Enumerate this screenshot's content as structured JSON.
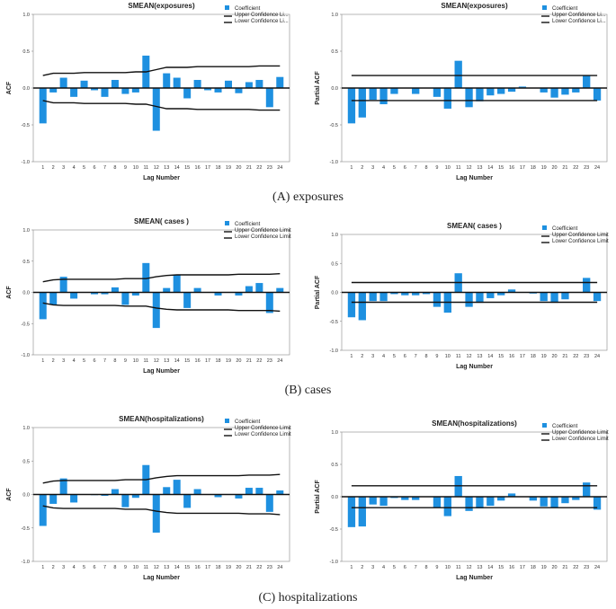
{
  "colors": {
    "bar": "#1E90E0",
    "line": "#111111",
    "axis": "#888888"
  },
  "captions": {
    "a": "(A)  exposures",
    "b": "(B)  cases",
    "c": "(C) hospitalizations"
  },
  "chart_data": [
    {
      "id": "a_acf",
      "type": "bar",
      "title": "SMEAN(exposures)",
      "xlabel": "Lag Number",
      "ylabel": "ACF",
      "ylim": [
        -1,
        1
      ],
      "yticks": [
        "1.0",
        "0.5",
        "0.0",
        "-0.5",
        "-1.0"
      ],
      "legend": [
        "Coefficient",
        "Upper Confidence Li...",
        "Lower Confidence Li..."
      ],
      "categories": [
        "1",
        "2",
        "3",
        "4",
        "5",
        "6",
        "7",
        "8",
        "9",
        "10",
        "11",
        "12",
        "13",
        "14",
        "15",
        "16",
        "17",
        "18",
        "19",
        "20",
        "21",
        "22",
        "23",
        "24"
      ],
      "values": [
        -0.48,
        -0.06,
        0.14,
        -0.12,
        0.1,
        -0.03,
        -0.12,
        0.11,
        -0.08,
        -0.06,
        0.44,
        -0.58,
        0.2,
        0.14,
        -0.14,
        0.11,
        -0.03,
        -0.06,
        0.1,
        -0.07,
        0.08,
        0.11,
        -0.26,
        0.15
      ],
      "upper": [
        0.17,
        0.2,
        0.2,
        0.2,
        0.21,
        0.21,
        0.21,
        0.21,
        0.21,
        0.22,
        0.22,
        0.25,
        0.28,
        0.28,
        0.28,
        0.29,
        0.29,
        0.29,
        0.29,
        0.29,
        0.29,
        0.3,
        0.3,
        0.3
      ],
      "lower": [
        -0.17,
        -0.2,
        -0.2,
        -0.2,
        -0.21,
        -0.21,
        -0.21,
        -0.21,
        -0.21,
        -0.22,
        -0.22,
        -0.25,
        -0.28,
        -0.28,
        -0.28,
        -0.29,
        -0.29,
        -0.29,
        -0.29,
        -0.29,
        -0.29,
        -0.3,
        -0.3,
        -0.3
      ]
    },
    {
      "id": "a_pacf",
      "type": "bar",
      "title": "SMEAN(exposures)",
      "xlabel": "Lag Number",
      "ylabel": "Partial ACF",
      "ylim": [
        -1,
        1
      ],
      "yticks": [
        "1.0",
        "0.5",
        "0.0",
        "-0.5",
        "-1.0"
      ],
      "legend": [
        "Coefficient",
        "Upper Confidence Li...",
        "Lower Confidence Li..."
      ],
      "categories": [
        "1",
        "2",
        "3",
        "4",
        "5",
        "6",
        "7",
        "8",
        "9",
        "10",
        "11",
        "12",
        "13",
        "14",
        "15",
        "16",
        "17",
        "18",
        "19",
        "20",
        "21",
        "22",
        "23",
        "24"
      ],
      "values": [
        -0.48,
        -0.4,
        -0.16,
        -0.22,
        -0.08,
        0.0,
        -0.08,
        0.0,
        -0.12,
        -0.28,
        0.37,
        -0.26,
        -0.18,
        -0.1,
        -0.08,
        -0.05,
        0.02,
        0.0,
        -0.06,
        -0.13,
        -0.09,
        -0.06,
        0.17,
        -0.17
      ],
      "upper": [
        0.17,
        0.17,
        0.17,
        0.17,
        0.17,
        0.17,
        0.17,
        0.17,
        0.17,
        0.17,
        0.17,
        0.17,
        0.17,
        0.17,
        0.17,
        0.17,
        0.17,
        0.17,
        0.17,
        0.17,
        0.17,
        0.17,
        0.17,
        0.17
      ],
      "lower": [
        -0.17,
        -0.17,
        -0.17,
        -0.17,
        -0.17,
        -0.17,
        -0.17,
        -0.17,
        -0.17,
        -0.17,
        -0.17,
        -0.17,
        -0.17,
        -0.17,
        -0.17,
        -0.17,
        -0.17,
        -0.17,
        -0.17,
        -0.17,
        -0.17,
        -0.17,
        -0.17,
        -0.17
      ]
    },
    {
      "id": "b_acf",
      "type": "bar",
      "title": "SMEAN( cases )",
      "xlabel": "Lag Number",
      "ylabel": "ACF",
      "ylim": [
        -1,
        1
      ],
      "yticks": [
        "1.0",
        "0.5",
        "0.0",
        "-0.5",
        "-1.0"
      ],
      "legend": [
        "Coefficient",
        "Upper Confidence Limit",
        "Lower Confidence Limit"
      ],
      "categories": [
        "1",
        "2",
        "3",
        "4",
        "5",
        "6",
        "7",
        "8",
        "9",
        "10",
        "11",
        "12",
        "13",
        "14",
        "15",
        "16",
        "17",
        "18",
        "19",
        "20",
        "21",
        "22",
        "23",
        "24"
      ],
      "values": [
        -0.43,
        -0.2,
        0.25,
        -0.1,
        0.0,
        -0.03,
        -0.03,
        0.08,
        -0.2,
        -0.05,
        0.47,
        -0.57,
        0.07,
        0.28,
        -0.25,
        0.07,
        0.0,
        -0.05,
        0.0,
        -0.05,
        0.1,
        0.15,
        -0.33,
        0.07
      ],
      "upper": [
        0.17,
        0.2,
        0.21,
        0.21,
        0.21,
        0.21,
        0.21,
        0.21,
        0.22,
        0.22,
        0.22,
        0.25,
        0.27,
        0.28,
        0.28,
        0.28,
        0.28,
        0.28,
        0.28,
        0.29,
        0.29,
        0.29,
        0.29,
        0.3
      ],
      "lower": [
        -0.17,
        -0.2,
        -0.21,
        -0.21,
        -0.21,
        -0.21,
        -0.21,
        -0.21,
        -0.22,
        -0.22,
        -0.22,
        -0.25,
        -0.27,
        -0.28,
        -0.28,
        -0.28,
        -0.28,
        -0.28,
        -0.28,
        -0.29,
        -0.29,
        -0.29,
        -0.29,
        -0.3
      ]
    },
    {
      "id": "b_pacf",
      "type": "bar",
      "title": "SMEAN( cases )",
      "xlabel": "Lag Number",
      "ylabel": "Partial ACF",
      "ylim": [
        -1,
        1
      ],
      "yticks": [
        "1.0",
        "0.5",
        "0.0",
        "-0.5",
        "-1.0"
      ],
      "legend": [
        "Coefficient",
        "Upper Confidence Limit",
        "Lower Confidence Limit"
      ],
      "categories": [
        "1",
        "2",
        "3",
        "4",
        "5",
        "6",
        "7",
        "8",
        "9",
        "10",
        "11",
        "12",
        "13",
        "14",
        "15",
        "16",
        "17",
        "18",
        "19",
        "20",
        "21",
        "22",
        "23",
        "24"
      ],
      "values": [
        -0.43,
        -0.48,
        -0.15,
        -0.15,
        -0.03,
        -0.05,
        -0.05,
        -0.03,
        -0.25,
        -0.35,
        0.33,
        -0.25,
        -0.18,
        -0.1,
        -0.05,
        0.05,
        0.0,
        -0.02,
        -0.15,
        -0.18,
        -0.12,
        0.0,
        0.25,
        -0.15
      ],
      "upper": [
        0.17,
        0.17,
        0.17,
        0.17,
        0.17,
        0.17,
        0.17,
        0.17,
        0.17,
        0.17,
        0.17,
        0.17,
        0.17,
        0.17,
        0.17,
        0.17,
        0.17,
        0.17,
        0.17,
        0.17,
        0.17,
        0.17,
        0.17,
        0.17
      ],
      "lower": [
        -0.17,
        -0.17,
        -0.17,
        -0.17,
        -0.17,
        -0.17,
        -0.17,
        -0.17,
        -0.17,
        -0.17,
        -0.17,
        -0.17,
        -0.17,
        -0.17,
        -0.17,
        -0.17,
        -0.17,
        -0.17,
        -0.17,
        -0.17,
        -0.17,
        -0.17,
        -0.17,
        -0.17
      ]
    },
    {
      "id": "c_acf",
      "type": "bar",
      "title": "SMEAN(hospitalizations)",
      "xlabel": "Lag Number",
      "ylabel": "ACF",
      "ylim": [
        -1,
        1
      ],
      "yticks": [
        "1.0",
        "0.5",
        "0.0",
        "-0.5",
        "-1.0"
      ],
      "legend": [
        "Coefficient",
        "Upper Confidence Limit",
        "Lower Confidence Limit"
      ],
      "categories": [
        "1",
        "2",
        "3",
        "4",
        "5",
        "6",
        "7",
        "8",
        "9",
        "10",
        "11",
        "12",
        "13",
        "14",
        "15",
        "16",
        "17",
        "18",
        "19",
        "20",
        "21",
        "22",
        "23",
        "24"
      ],
      "values": [
        -0.47,
        -0.14,
        0.24,
        -0.12,
        0.0,
        -0.01,
        -0.02,
        0.08,
        -0.19,
        -0.05,
        0.44,
        -0.57,
        0.11,
        0.22,
        -0.2,
        0.08,
        0.0,
        -0.04,
        0.0,
        -0.06,
        0.1,
        0.1,
        -0.26,
        0.06
      ],
      "upper": [
        0.17,
        0.2,
        0.21,
        0.21,
        0.21,
        0.21,
        0.21,
        0.21,
        0.22,
        0.22,
        0.22,
        0.25,
        0.27,
        0.28,
        0.28,
        0.28,
        0.28,
        0.28,
        0.28,
        0.28,
        0.29,
        0.29,
        0.29,
        0.3
      ],
      "lower": [
        -0.17,
        -0.2,
        -0.21,
        -0.21,
        -0.21,
        -0.21,
        -0.21,
        -0.21,
        -0.22,
        -0.22,
        -0.22,
        -0.25,
        -0.27,
        -0.28,
        -0.28,
        -0.28,
        -0.28,
        -0.28,
        -0.28,
        -0.28,
        -0.29,
        -0.29,
        -0.29,
        -0.3
      ]
    },
    {
      "id": "c_pacf",
      "type": "bar",
      "title": "SMEAN(hospitalizations)",
      "xlabel": "Lag Number",
      "ylabel": "Partial ACF",
      "ylim": [
        -1,
        1
      ],
      "yticks": [
        "1.0",
        "0.5",
        "0.0",
        "-0.5",
        "-1.0"
      ],
      "legend": [
        "Coefficient",
        "Upper Confidence Limit",
        "Lower Confidence Limit"
      ],
      "categories": [
        "1",
        "2",
        "3",
        "4",
        "5",
        "6",
        "7",
        "8",
        "9",
        "10",
        "11",
        "12",
        "13",
        "14",
        "15",
        "16",
        "17",
        "18",
        "19",
        "20",
        "21",
        "22",
        "23",
        "24"
      ],
      "values": [
        -0.47,
        -0.46,
        -0.12,
        -0.14,
        -0.02,
        -0.05,
        -0.05,
        0.0,
        -0.16,
        -0.3,
        0.32,
        -0.22,
        -0.18,
        -0.14,
        -0.06,
        0.05,
        0.0,
        -0.06,
        -0.15,
        -0.16,
        -0.1,
        -0.05,
        0.22,
        -0.2
      ],
      "upper": [
        0.17,
        0.17,
        0.17,
        0.17,
        0.17,
        0.17,
        0.17,
        0.17,
        0.17,
        0.17,
        0.17,
        0.17,
        0.17,
        0.17,
        0.17,
        0.17,
        0.17,
        0.17,
        0.17,
        0.17,
        0.17,
        0.17,
        0.17,
        0.17
      ],
      "lower": [
        -0.17,
        -0.17,
        -0.17,
        -0.17,
        -0.17,
        -0.17,
        -0.17,
        -0.17,
        -0.17,
        -0.17,
        -0.17,
        -0.17,
        -0.17,
        -0.17,
        -0.17,
        -0.17,
        -0.17,
        -0.17,
        -0.17,
        -0.17,
        -0.17,
        -0.17,
        -0.17,
        -0.17
      ]
    }
  ]
}
